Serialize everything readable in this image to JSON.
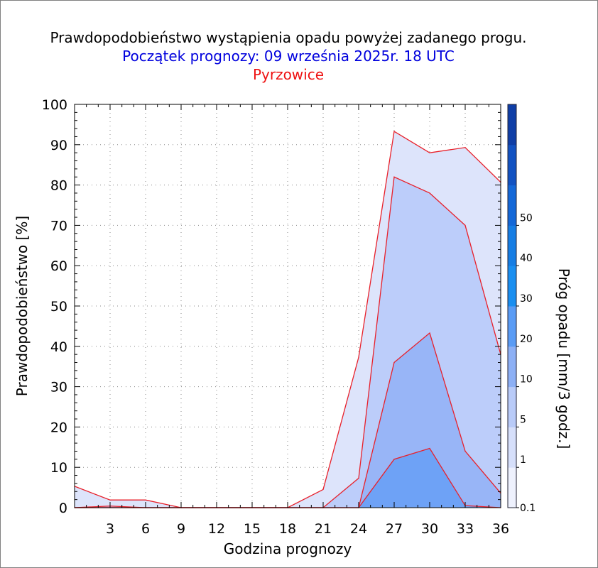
{
  "colors": {
    "title": "#000000",
    "subtitle": "#0000dd",
    "station": "#ee1111",
    "series_line": "#e8202a",
    "plot_background": "#ffffff"
  },
  "chart_data": {
    "type": "area",
    "title": "Prawdopodobieństwo wystąpienia opadu powyżej zadanego progu.",
    "subtitle": "Początek prognozy: 09 września 2025r. 18 UTC",
    "station": "Pyrzowice",
    "xlabel": "Godzina prognozy",
    "ylabel": "Prawdopodobieństwo [%]",
    "colorbar_label": "Próg opadu [mm/3 godz.]",
    "xlim": [
      0,
      36
    ],
    "ylim": [
      0,
      100
    ],
    "x_ticks": [
      3,
      6,
      9,
      12,
      15,
      18,
      21,
      24,
      27,
      30,
      33,
      36
    ],
    "y_ticks": [
      0,
      10,
      20,
      30,
      40,
      50,
      60,
      70,
      80,
      90,
      100
    ],
    "grid": true,
    "x": [
      0,
      3,
      6,
      9,
      12,
      15,
      18,
      21,
      24,
      27,
      30,
      33,
      36
    ],
    "series": [
      {
        "threshold": 0.1,
        "color": "#dde4fb",
        "values": [
          5.3,
          1.9,
          1.9,
          0,
          0,
          0,
          0,
          4.5,
          37.3,
          93.3,
          88.0,
          89.3,
          80.7
        ]
      },
      {
        "threshold": 1,
        "color": "#bccdfa",
        "values": [
          0,
          0.4,
          0,
          0,
          0,
          0,
          0,
          0,
          7.3,
          82.0,
          78.0,
          70.0,
          38.0
        ]
      },
      {
        "threshold": 5,
        "color": "#98b5f7",
        "values": [
          0,
          0,
          0,
          0,
          0,
          0,
          0,
          0,
          0,
          36.0,
          43.3,
          14.0,
          3.6
        ]
      },
      {
        "threshold": 10,
        "color": "#6ea2f6",
        "values": [
          0,
          0,
          0,
          0,
          0,
          0,
          0,
          0,
          0,
          12.0,
          14.7,
          0.5,
          0
        ]
      }
    ],
    "colorbar": {
      "labels": [
        "0.1",
        "1",
        "5",
        "10",
        "20",
        "30",
        "40",
        "50"
      ],
      "bands": [
        "#eef1fd",
        "#d6dffa",
        "#b9cbf8",
        "#8db0f5",
        "#5a9cf5",
        "#1a8ff0",
        "#167ee4",
        "#1468d8",
        "#1252c2",
        "#0f3ea6"
      ]
    }
  }
}
